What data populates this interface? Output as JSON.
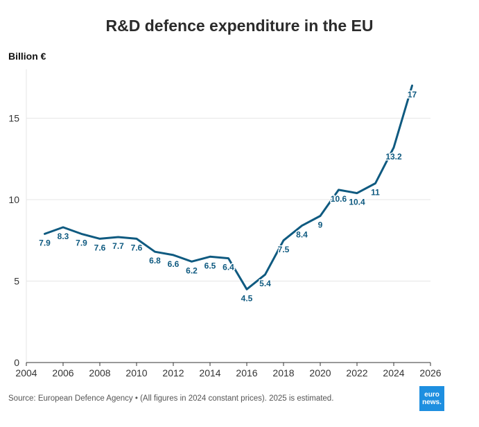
{
  "title": "R&D defence expenditure in the EU",
  "unit_label": "Billion €",
  "source": "Source: European Defence Agency • (All figures in 2024 constant prices). 2025 is estimated.",
  "logo": {
    "line1": "euro",
    "line2": "news."
  },
  "colors": {
    "line": "#0f5a80",
    "label": "#0f5a80",
    "grid": "#e6e6e6",
    "axis": "#333333",
    "logo_bg": "#1e8fe0"
  },
  "chart_data": {
    "type": "line",
    "title": "R&D defence expenditure in the EU",
    "ylabel": "Billion €",
    "xlim": [
      2004,
      2026
    ],
    "ylim": [
      0,
      18
    ],
    "x_ticks": [
      2004,
      2006,
      2008,
      2010,
      2012,
      2014,
      2016,
      2018,
      2020,
      2022,
      2024,
      2026
    ],
    "y_ticks": [
      0,
      5,
      10,
      15
    ],
    "grid": true,
    "series": [
      {
        "x": [
          2005,
          2006,
          2007,
          2008,
          2009,
          2010,
          2011,
          2012,
          2013,
          2014,
          2015,
          2016,
          2017,
          2018,
          2019,
          2020,
          2021,
          2022,
          2023,
          2024,
          2025
        ],
        "y": [
          7.9,
          8.3,
          7.9,
          7.6,
          7.7,
          7.6,
          6.8,
          6.6,
          6.2,
          6.5,
          6.4,
          4.5,
          5.4,
          7.5,
          8.4,
          9,
          10.6,
          10.4,
          11,
          13.2,
          17
        ],
        "labels": [
          "7.9",
          "8.3",
          "7.9",
          "7.6",
          "7.7",
          "7.6",
          "6.8",
          "6.6",
          "6.2",
          "6.5",
          "6.4",
          "4.5",
          "5.4",
          "7.5",
          "8.4",
          "9",
          "10.6",
          "10.4",
          "11",
          "13.2",
          "17"
        ]
      }
    ]
  }
}
